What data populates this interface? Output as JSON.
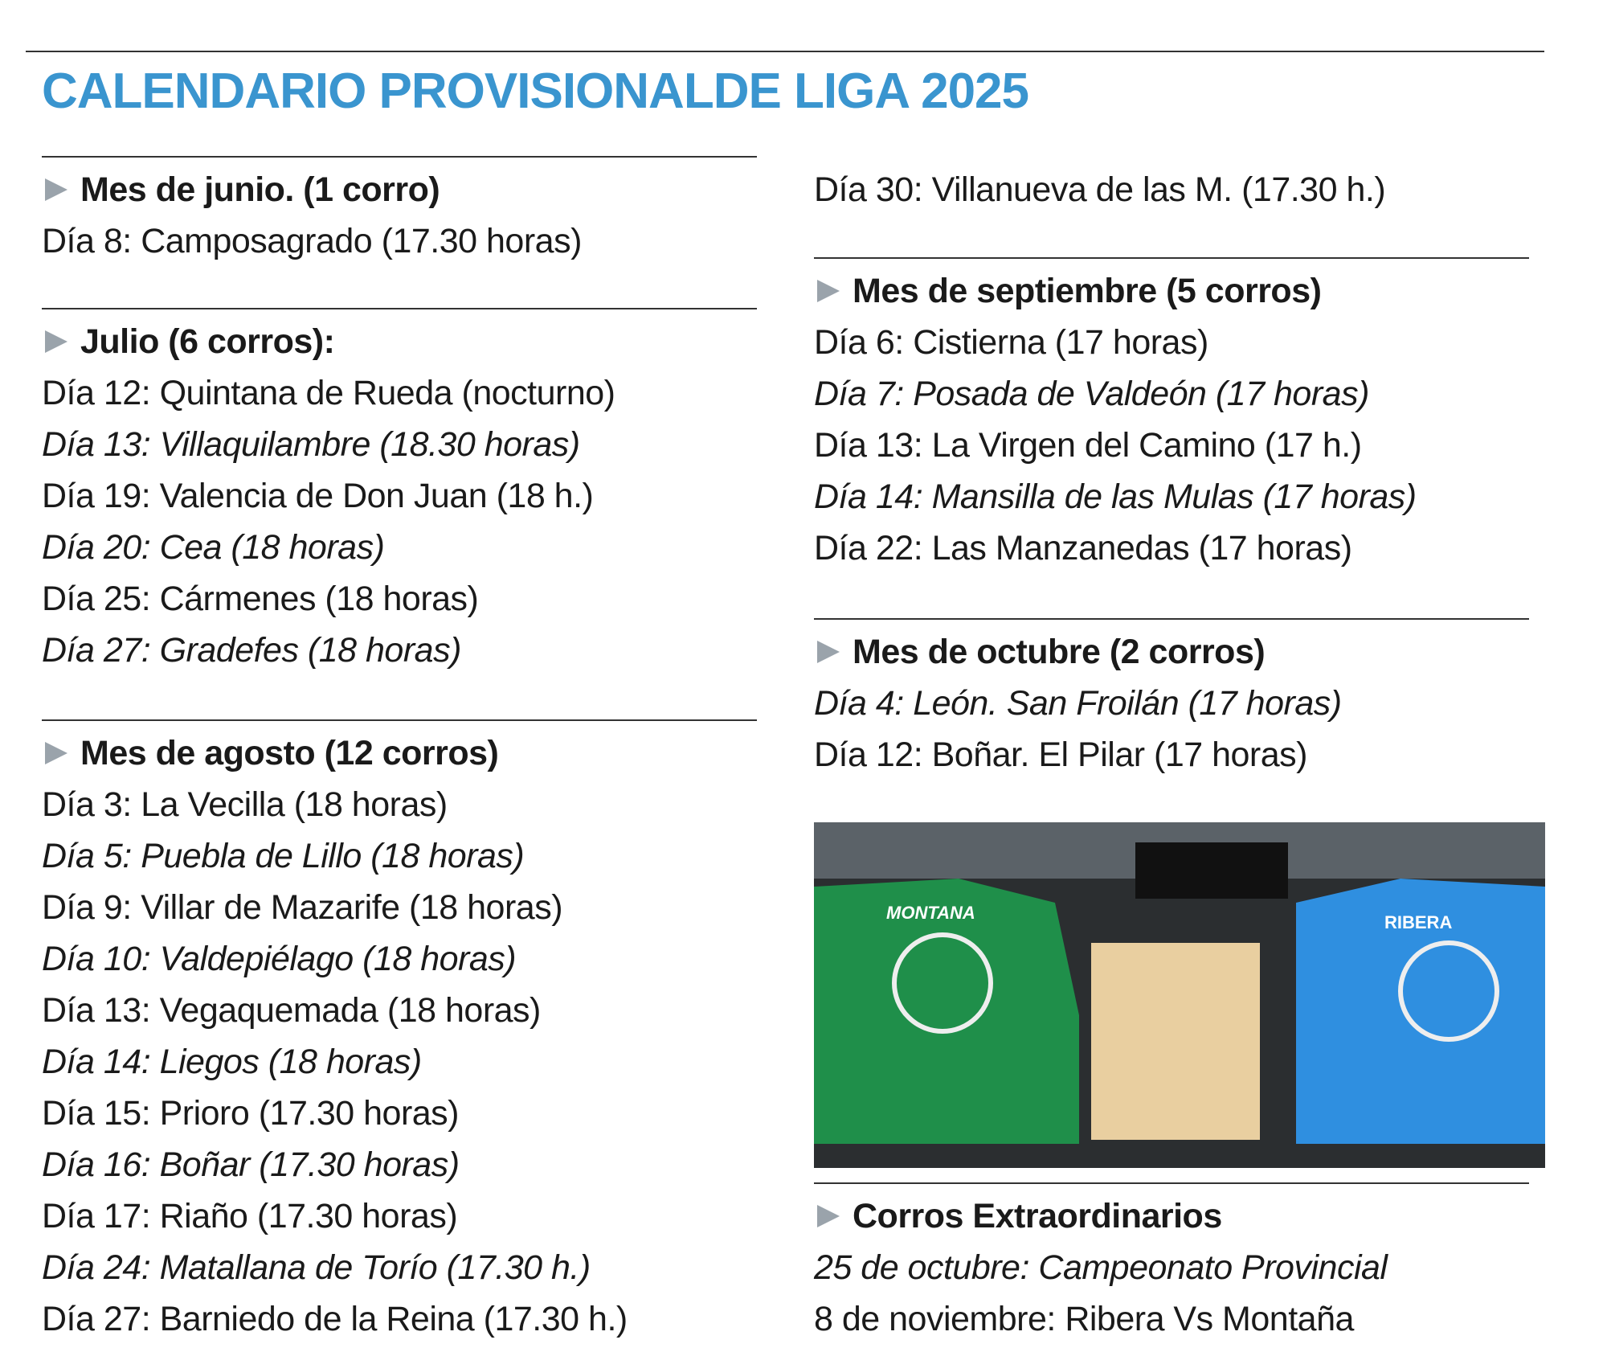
{
  "title": "CALENDARIO PROVISIONALDE LIGA 2025",
  "left": [
    {
      "heading": "Mes de junio.  (1 corro)",
      "entries": [
        {
          "label": "Día 8:",
          "text": "Camposagrado (17.30 horas)",
          "italic": false
        }
      ]
    },
    {
      "heading": "Julio (6 corros):",
      "entries": [
        {
          "label": "Día 12:",
          "text": "Quintana de Rueda (nocturno)",
          "italic": false
        },
        {
          "label": "Día 13:",
          "text": "Villaquilambre (18.30 horas)",
          "italic": true
        },
        {
          "label": "Día 19:",
          "text": "Valencia de Don Juan (18 h.)",
          "italic": false
        },
        {
          "label": "Día 20:",
          "text": "Cea (18 horas)",
          "italic": true
        },
        {
          "label": "Día 25:",
          "text": "Cármenes (18 horas)",
          "italic": false
        },
        {
          "label": "Día 27:",
          "text": "Gradefes (18 horas)",
          "italic": true
        }
      ]
    },
    {
      "heading": "Mes de agosto (12 corros)",
      "entries": [
        {
          "label": "Día 3:",
          "text": "La Vecilla (18 horas)",
          "italic": false
        },
        {
          "label": "Día 5:",
          "text": "Puebla de Lillo (18 horas)",
          "italic": true
        },
        {
          "label": "Día 9:",
          "text": "Villar de Mazarife (18 horas)",
          "italic": false
        },
        {
          "label": "Día 10:",
          "text": "Valdepiélago (18 horas)",
          "italic": true
        },
        {
          "label": "Día 13:",
          "text": "Vegaquemada (18 horas)",
          "italic": false
        },
        {
          "label": "Día 14:",
          "text": "Liegos (18 horas)",
          "italic": true
        },
        {
          "label": "Día 15:",
          "text": "Prioro (17.30 horas)",
          "italic": false
        },
        {
          "label": "Día 16:",
          "text": "Boñar (17.30 horas)",
          "italic": true
        },
        {
          "label": "Día 17:",
          "text": "Riaño (17.30 horas)",
          "italic": false
        },
        {
          "label": "Día 24:",
          "text": "Matallana de Torío (17.30 h.)",
          "italic": true
        },
        {
          "label": "Día 27:",
          "text": "Barniedo de la Reina (17.30 h.)",
          "italic": false
        }
      ]
    }
  ],
  "right": {
    "continuation": [
      {
        "label": "Día 30:",
        "text": "Villanueva de las M. (17.30 h.)",
        "italic": false
      }
    ],
    "sections": [
      {
        "heading": "Mes de septiembre (5 corros)",
        "entries": [
          {
            "label": "Día 6:",
            "text": "Cistierna (17 horas)",
            "italic": false
          },
          {
            "label": "Día 7:",
            "text": "Posada de Valdeón (17 horas)",
            "italic": true
          },
          {
            "label": "Día 13:",
            "text": "La Virgen del Camino (17 h.)",
            "italic": false
          },
          {
            "label": "Día 14:",
            "text": "Mansilla de las Mulas (17 horas)",
            "italic": true
          },
          {
            "label": "Día 22:",
            "text": "Las Manzanedas (17 horas)",
            "italic": false
          }
        ]
      },
      {
        "heading": "Mes de octubre (2 corros)",
        "entries": [
          {
            "label": "Día 4:",
            "text": "León. San Froilán (17 horas)",
            "italic": true
          },
          {
            "label": "Día 12:",
            "text": "Boñar. El Pilar (17 horas)",
            "italic": false
          }
        ]
      },
      {
        "heading": "Corros Extraordinarios",
        "entries": [
          {
            "label": "25 de octubre:",
            "text": "Campeonato Provincial",
            "italic": true
          },
          {
            "label": "8 de noviembre:",
            "text": "Ribera Vs Montaña",
            "italic": false
          }
        ]
      }
    ]
  },
  "photo": {
    "shirt_left": "MONTANA",
    "shirt_right": "RIBERA"
  }
}
